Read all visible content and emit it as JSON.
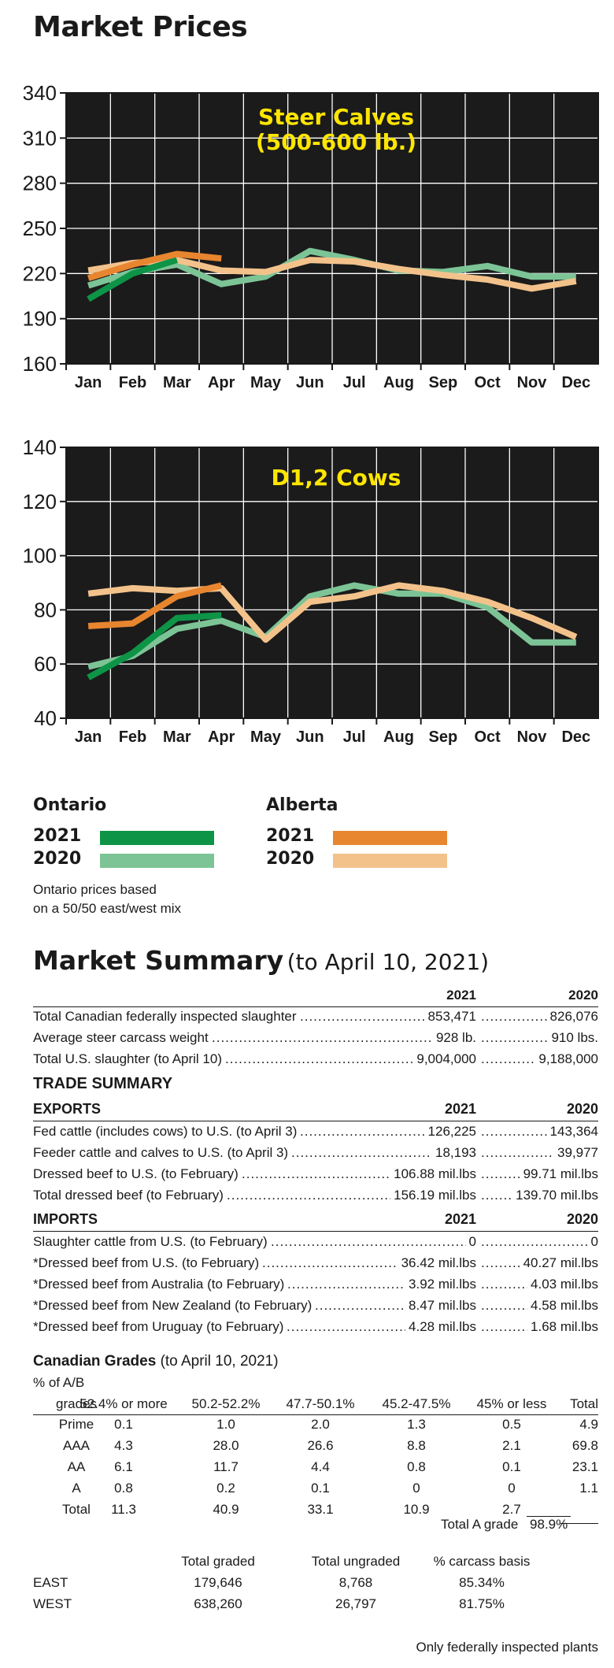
{
  "title": "Market Prices",
  "months": [
    "Jan",
    "Feb",
    "Mar",
    "Apr",
    "May",
    "Jun",
    "Jul",
    "Aug",
    "Sep",
    "Oct",
    "Nov",
    "Dec"
  ],
  "colors": {
    "ontario_2021": "#0e9447",
    "ontario_2020": "#7cc496",
    "alberta_2021": "#e8852f",
    "alberta_2020": "#f3c28b",
    "chart_title": "#ffe600",
    "plot_bg": "#1b1b1b",
    "grid": "#ffffff"
  },
  "chart_data": [
    {
      "type": "line",
      "title": "Steer Calves (500-600 lb.)",
      "title_lines": [
        "Steer Calves",
        "(500-600 lb.)"
      ],
      "categories": [
        "Jan",
        "Feb",
        "Mar",
        "Apr",
        "May",
        "Jun",
        "Jul",
        "Aug",
        "Sep",
        "Oct",
        "Nov",
        "Dec"
      ],
      "ylim": [
        160,
        340
      ],
      "yticks": [
        160,
        190,
        220,
        250,
        280,
        310,
        340
      ],
      "grid": true,
      "series": [
        {
          "name": "Ontario 2021",
          "color_key": "ontario_2021",
          "values": [
            203,
            220,
            229,
            null,
            null,
            null,
            null,
            null,
            null,
            null,
            null,
            null
          ]
        },
        {
          "name": "Ontario 2020",
          "color_key": "ontario_2020",
          "values": [
            212,
            221,
            226,
            213,
            218,
            235,
            229,
            222,
            221,
            225,
            218,
            218
          ]
        },
        {
          "name": "Alberta 2021",
          "color_key": "alberta_2021",
          "values": [
            217,
            226,
            233,
            230,
            null,
            null,
            null,
            null,
            null,
            null,
            null,
            null
          ]
        },
        {
          "name": "Alberta 2020",
          "color_key": "alberta_2020",
          "values": [
            222,
            227,
            229,
            222,
            221,
            229,
            228,
            223,
            219,
            216,
            210,
            215
          ]
        }
      ]
    },
    {
      "type": "line",
      "title": "D1,2 Cows",
      "title_lines": [
        "D1,2 Cows"
      ],
      "categories": [
        "Jan",
        "Feb",
        "Mar",
        "Apr",
        "May",
        "Jun",
        "Jul",
        "Aug",
        "Sep",
        "Oct",
        "Nov",
        "Dec"
      ],
      "ylim": [
        40,
        140
      ],
      "yticks": [
        40,
        60,
        80,
        100,
        120,
        140
      ],
      "grid": true,
      "series": [
        {
          "name": "Ontario 2021",
          "color_key": "ontario_2021",
          "values": [
            55,
            64,
            77,
            78,
            null,
            null,
            null,
            null,
            null,
            null,
            null,
            null
          ]
        },
        {
          "name": "Ontario 2020",
          "color_key": "ontario_2020",
          "values": [
            59,
            63,
            73,
            76,
            70,
            85,
            89,
            86,
            86,
            81,
            68,
            68
          ]
        },
        {
          "name": "Alberta 2021",
          "color_key": "alberta_2021",
          "values": [
            74,
            75,
            85,
            89,
            null,
            null,
            null,
            null,
            null,
            null,
            null,
            null
          ]
        },
        {
          "name": "Alberta 2020",
          "color_key": "alberta_2020",
          "values": [
            86,
            88,
            87,
            88,
            69,
            83,
            85,
            89,
            87,
            83,
            77,
            70
          ]
        }
      ]
    }
  ],
  "legend": {
    "ontario": {
      "title": "Ontario",
      "y2021": "2021",
      "y2020": "2020"
    },
    "alberta": {
      "title": "Alberta",
      "y2021": "2021",
      "y2020": "2020"
    },
    "note_line1": "Ontario prices based",
    "note_line2": "on a 50/50 east/west mix"
  },
  "summary": {
    "title": "Market Summary",
    "subtitle": "(to April 10, 2021)",
    "col_2021": "2021",
    "col_2020": "2020",
    "rows": [
      {
        "label": "Total Canadian federally inspected slaughter",
        "v2021": "853,471",
        "v2020": "826,076"
      },
      {
        "label": "Average steer carcass weight",
        "v2021": "928 lb.",
        "v2020": "910 lbs."
      },
      {
        "label": "Total U.S. slaughter (to April 10)",
        "v2021": "9,004,000",
        "v2020": "9,188,000"
      }
    ]
  },
  "trade": {
    "title": "TRADE SUMMARY",
    "exports": {
      "header": "EXPORTS",
      "col_2021": "2021",
      "col_2020": "2020",
      "rows": [
        {
          "label": "Fed cattle (includes cows) to U.S. (to April 3)",
          "v2021": "126,225",
          "v2020": "143,364"
        },
        {
          "label": "Feeder cattle and calves to U.S. (to April 3)",
          "v2021": "18,193",
          "v2020": "39,977"
        },
        {
          "label": "Dressed beef to U.S. (to February)",
          "v2021": "106.88 mil.lbs",
          "v2020": "99.71 mil.lbs"
        },
        {
          "label": "Total dressed beef (to February)",
          "v2021": "156.19 mil.lbs",
          "v2020": "139.70 mil.lbs"
        }
      ]
    },
    "imports": {
      "header": "IMPORTS",
      "col_2021": "2021",
      "col_2020": "2020",
      "rows": [
        {
          "label": "Slaughter cattle from U.S. (to February)",
          "v2021": "0",
          "v2020": "0"
        },
        {
          "label": "*Dressed beef from U.S. (to February)",
          "v2021": "36.42 mil.lbs",
          "v2020": "40.27 mil.lbs"
        },
        {
          "label": "*Dressed beef from Australia (to February)",
          "v2021": "3.92 mil.lbs",
          "v2020": "4.03 mil.lbs"
        },
        {
          "label": "*Dressed beef from New Zealand (to February)",
          "v2021": "8.47 mil.lbs",
          "v2020": "4.58 mil.lbs"
        },
        {
          "label": "*Dressed beef from Uruguay (to February)",
          "v2021": "4.28 mil.lbs",
          "v2020": "1.68 mil.lbs"
        }
      ]
    }
  },
  "grades": {
    "title": "Canadian Grades",
    "subtitle": "(to April 10, 2021)",
    "pct_label": "% of A/B",
    "headers": [
      "grades",
      "52.4% or more",
      "50.2-52.2%",
      "47.7-50.1%",
      "45.2-47.5%",
      "45% or less",
      "Total"
    ],
    "rows": [
      [
        "Prime",
        "0.1",
        "1.0",
        "2.0",
        "1.3",
        "0.5",
        "4.9"
      ],
      [
        "AAA",
        "4.3",
        "28.0",
        "26.6",
        "8.8",
        "2.1",
        "69.8"
      ],
      [
        "AA",
        "6.1",
        "11.7",
        "4.4",
        "0.8",
        "0.1",
        "23.1"
      ],
      [
        "A",
        "0.8",
        "0.2",
        "0.1",
        "0",
        "0",
        "1.1"
      ],
      [
        "Total",
        "11.3",
        "40.9",
        "33.1",
        "10.9",
        "2.7",
        ""
      ]
    ],
    "total_a_label": "Total A grade",
    "total_a_value": "98.9%",
    "ungraded_headers": [
      "",
      "Total graded",
      "Total ungraded",
      "% carcass basis"
    ],
    "ungraded_rows": [
      [
        "EAST",
        "179,646",
        "8,768",
        "85.34%"
      ],
      [
        "WEST",
        "638,260",
        "26,797",
        "81.75%"
      ]
    ],
    "footnote": "Only federally inspected plants"
  }
}
